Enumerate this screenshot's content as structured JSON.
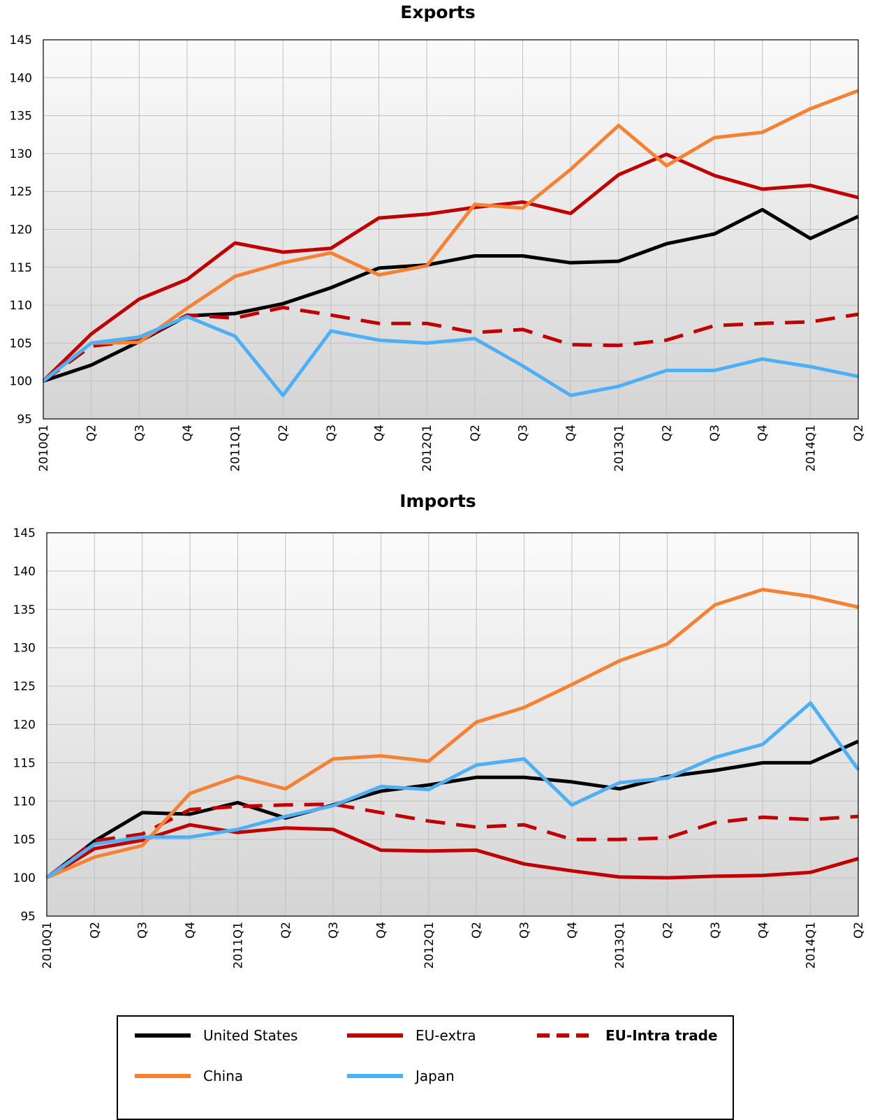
{
  "colors": {
    "united_states": "#000000",
    "eu_extra": "#c00000",
    "eu_intra": "#c00000",
    "china": "#f58232",
    "japan": "#4db0f5",
    "grid": "#c0c0c0"
  },
  "legend": {
    "items": [
      {
        "label": "United States",
        "color": "#000000",
        "dashed": false,
        "bold": false
      },
      {
        "label": "EU-extra",
        "color": "#c00000",
        "dashed": false,
        "bold": false
      },
      {
        "label": "EU-Intra trade",
        "color": "#c00000",
        "dashed": true,
        "bold": true
      },
      {
        "label": "China",
        "color": "#f58232",
        "dashed": false,
        "bold": false
      },
      {
        "label": "Japan",
        "color": "#4db0f5",
        "dashed": false,
        "bold": false
      }
    ]
  },
  "chart_data": [
    {
      "type": "line",
      "title": "Exports",
      "xlabel": "",
      "ylabel": "",
      "ylim": [
        95,
        145
      ],
      "yticks": [
        95,
        100,
        105,
        110,
        115,
        120,
        125,
        130,
        135,
        140,
        145
      ],
      "grid": true,
      "categories": [
        "2010Q1",
        "Q2",
        "Q3",
        "Q4",
        "2011Q1",
        "Q2",
        "Q3",
        "Q4",
        "2012Q1",
        "Q2",
        "Q3",
        "Q4",
        "2013Q1",
        "Q2",
        "Q3",
        "Q4",
        "2014Q1",
        "Q2"
      ],
      "series": [
        {
          "name": "United States",
          "color": "#000000",
          "dashed": false,
          "values": [
            100,
            102.1,
            105.2,
            108.6,
            108.9,
            110.2,
            112.3,
            114.9,
            115.3,
            116.5,
            116.5,
            115.6,
            115.8,
            118.1,
            119.4,
            122.6,
            118.8,
            121.7
          ]
        },
        {
          "name": "EU-extra",
          "color": "#c00000",
          "dashed": false,
          "values": [
            100,
            106.2,
            110.8,
            113.4,
            118.2,
            117.0,
            117.5,
            121.5,
            122.0,
            122.9,
            123.6,
            122.1,
            127.2,
            129.9,
            127.1,
            125.3,
            125.8,
            124.2
          ]
        },
        {
          "name": "EU-Intra trade",
          "color": "#c00000",
          "dashed": true,
          "values": [
            100,
            104.6,
            105.3,
            108.7,
            108.3,
            109.7,
            108.7,
            107.6,
            107.6,
            106.4,
            106.8,
            104.8,
            104.7,
            105.4,
            107.3,
            107.6,
            107.8,
            108.8
          ]
        },
        {
          "name": "China",
          "color": "#f58232",
          "dashed": false,
          "values": [
            100,
            105.0,
            105.1,
            109.6,
            113.8,
            115.6,
            116.9,
            114.0,
            115.2,
            123.3,
            122.8,
            127.9,
            133.7,
            128.4,
            132.1,
            132.8,
            135.9,
            138.3
          ]
        },
        {
          "name": "Japan",
          "color": "#4db0f5",
          "dashed": false,
          "values": [
            100,
            105.0,
            105.8,
            108.5,
            105.9,
            98.1,
            106.6,
            105.4,
            105.0,
            105.6,
            102.0,
            98.1,
            99.3,
            101.4,
            101.4,
            102.9,
            101.9,
            100.6
          ]
        }
      ]
    },
    {
      "type": "line",
      "title": "Imports",
      "xlabel": "",
      "ylabel": "",
      "ylim": [
        95,
        145
      ],
      "yticks": [
        95,
        100,
        105,
        110,
        115,
        120,
        125,
        130,
        135,
        140,
        145
      ],
      "grid": true,
      "categories": [
        "2010Q1",
        "Q2",
        "Q3",
        "Q4",
        "2011Q1",
        "Q2",
        "Q3",
        "Q4",
        "2012Q1",
        "Q2",
        "Q3",
        "Q4",
        "2013Q1",
        "Q2",
        "Q3",
        "Q4",
        "2014Q1",
        "Q2"
      ],
      "series": [
        {
          "name": "United States",
          "color": "#000000",
          "dashed": false,
          "values": [
            100,
            104.8,
            108.5,
            108.3,
            109.8,
            107.8,
            109.5,
            111.3,
            112.1,
            113.1,
            113.1,
            112.5,
            111.6,
            113.2,
            114.0,
            115.0,
            115.0,
            117.8
          ]
        },
        {
          "name": "EU-extra",
          "color": "#c00000",
          "dashed": false,
          "values": [
            100,
            103.8,
            104.9,
            106.9,
            105.9,
            106.5,
            106.3,
            103.6,
            103.5,
            103.6,
            101.8,
            100.9,
            100.1,
            100.0,
            100.2,
            100.3,
            100.7,
            102.5
          ]
        },
        {
          "name": "EU-Intra trade",
          "color": "#c00000",
          "dashed": true,
          "values": [
            100,
            104.8,
            105.7,
            108.9,
            109.3,
            109.5,
            109.6,
            108.5,
            107.4,
            106.6,
            106.9,
            105.0,
            105.0,
            105.2,
            107.2,
            107.9,
            107.6,
            108.0
          ]
        },
        {
          "name": "China",
          "color": "#f58232",
          "dashed": false,
          "values": [
            100,
            102.7,
            104.2,
            111.0,
            113.2,
            111.6,
            115.5,
            115.9,
            115.2,
            120.3,
            122.2,
            125.2,
            128.3,
            130.5,
            135.6,
            137.6,
            136.7,
            135.3
          ]
        },
        {
          "name": "Japan",
          "color": "#4db0f5",
          "dashed": false,
          "values": [
            100,
            104.4,
            105.3,
            105.3,
            106.3,
            108.0,
            109.4,
            111.9,
            111.5,
            114.7,
            115.5,
            109.5,
            112.4,
            113.0,
            115.7,
            117.4,
            122.8,
            114.1
          ]
        }
      ]
    }
  ]
}
